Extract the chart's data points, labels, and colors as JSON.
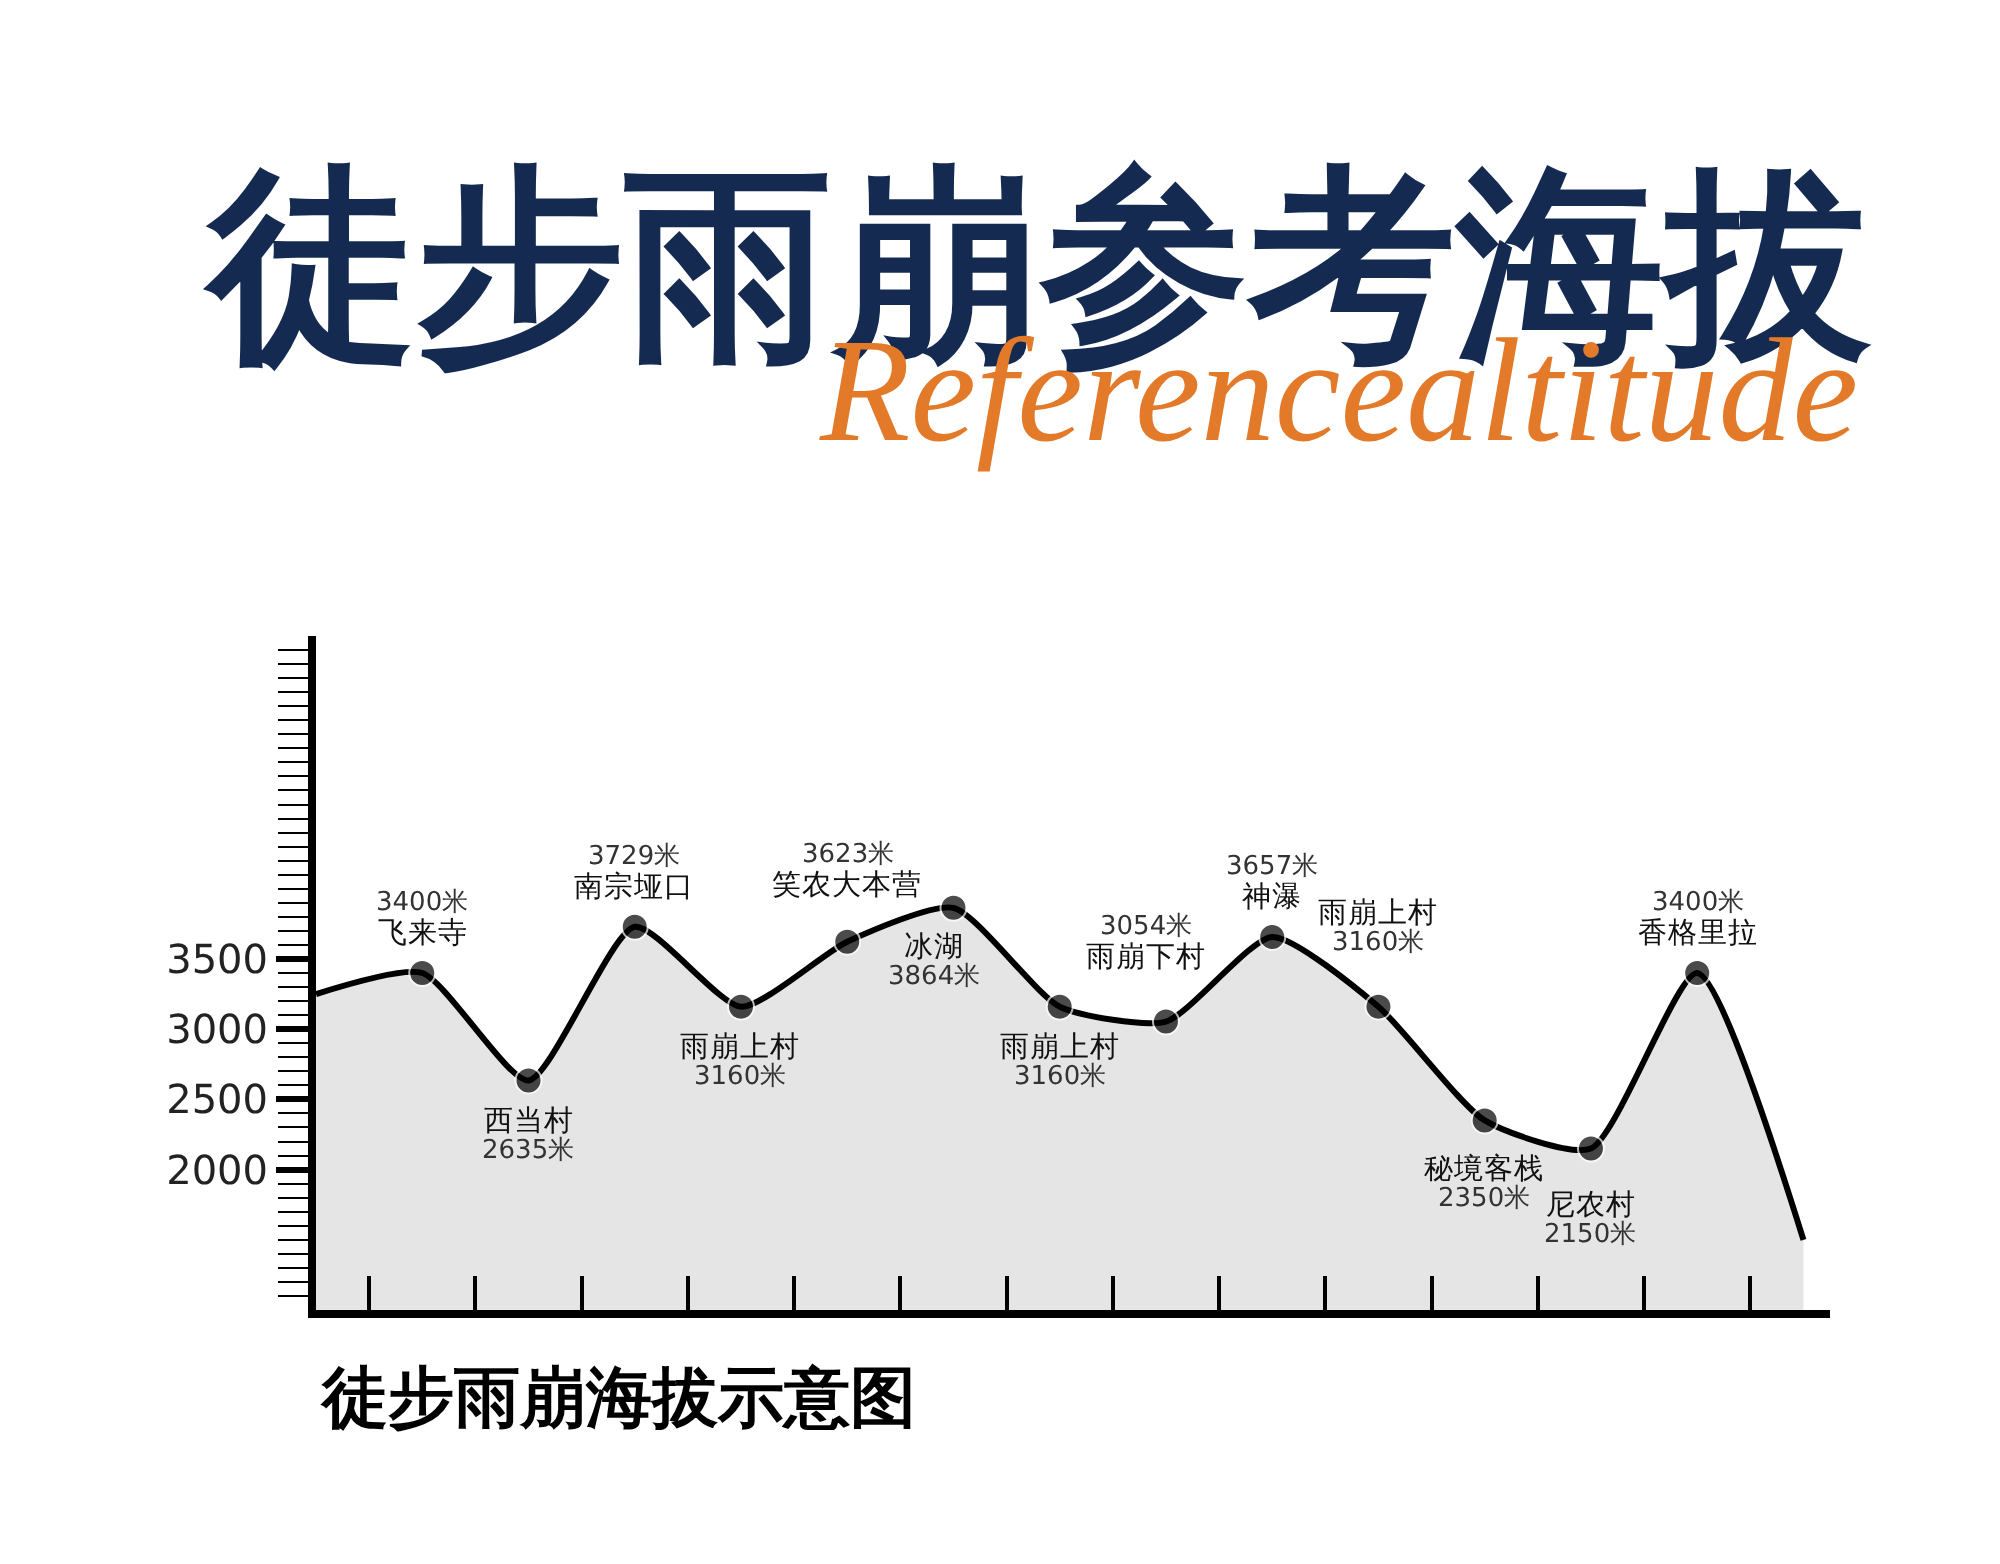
{
  "chart_data": {
    "type": "area",
    "title": "徒步雨崩参考海拔",
    "subtitle": "Referencealtitude",
    "categories": [
      null,
      null,
      null,
      null,
      null,
      null,
      null,
      null,
      null,
      null,
      null,
      null,
      null,
      null,
      null
    ],
    "ylim": [
      1000,
      5800
    ],
    "yticks": [
      {
        "value": 1100,
        "label": null
      },
      {
        "value": 1200,
        "label": null
      },
      {
        "value": 1300,
        "label": null
      },
      {
        "value": 1400,
        "label": null
      },
      {
        "value": 1500,
        "label": null
      },
      {
        "value": 1600,
        "label": null
      },
      {
        "value": 1700,
        "label": null
      },
      {
        "value": 1800,
        "label": null
      },
      {
        "value": 1900,
        "label": null
      },
      2000,
      {
        "value": 2100,
        "label": null
      },
      {
        "value": 2200,
        "label": null
      },
      {
        "value": 2300,
        "label": null
      },
      {
        "value": 2400,
        "label": null
      },
      2500,
      {
        "value": 2600,
        "label": null
      },
      {
        "value": 2700,
        "label": null
      },
      {
        "value": 2800,
        "label": null
      },
      {
        "value": 2900,
        "label": null
      },
      3000,
      {
        "value": 3100,
        "label": null
      },
      {
        "value": 3200,
        "label": null
      },
      {
        "value": 3300,
        "label": null
      },
      {
        "value": 3400,
        "label": null
      },
      3500,
      {
        "value": 3600,
        "label": null
      },
      {
        "value": 3700,
        "label": null
      },
      {
        "value": 3800,
        "label": null
      },
      {
        "value": 3900,
        "label": null
      },
      {
        "value": 4000,
        "label": null
      },
      {
        "value": 4100,
        "label": null
      },
      {
        "value": 4200,
        "label": null
      },
      {
        "value": 4300,
        "label": null
      },
      {
        "value": 4400,
        "label": null
      },
      {
        "value": 4500,
        "label": null
      },
      {
        "value": 4600,
        "label": null
      },
      {
        "value": 4700,
        "label": null
      },
      {
        "value": 4800,
        "label": null
      },
      {
        "value": 4900,
        "label": null
      },
      {
        "value": 5000,
        "label": null
      },
      {
        "value": 5100,
        "label": null
      },
      {
        "value": 5200,
        "label": null
      },
      {
        "value": 5300,
        "label": null
      },
      {
        "value": 5400,
        "label": null
      },
      {
        "value": 5500,
        "label": null
      },
      {
        "value": 5600,
        "label": null
      },
      {
        "value": 5700,
        "label": null
      }
    ],
    "tick_labels": "y",
    "series": [
      {
        "color": "#000000",
        "marker": "circle",
        "values": [
          3250,
          3400,
          2635,
          3729,
          3160,
          3623,
          3864,
          3160,
          3054,
          3657,
          3160,
          2350,
          2150,
          3400,
          1500
        ],
        "value_labels": [
          null,
          "3400米",
          "2635米",
          "3729米",
          "3160米",
          "3623米",
          "3864米",
          "3160米",
          "3054米",
          "3657米",
          "3160米",
          "2350米",
          "2150米",
          "3400米",
          null
        ]
      }
    ],
    "annotations": [
      {
        "text": "飞来寺",
        "y": 3400
      },
      {
        "text": "西当村",
        "y": 2635
      },
      {
        "text": "南宗垭口",
        "y": 3729
      },
      {
        "text": "雨崩上村",
        "y": 3160
      },
      {
        "text": "笑农大本营",
        "y": 3623
      },
      {
        "text": "冰湖",
        "y": 3864
      },
      {
        "text": "雨崩上村",
        "y": 3160
      },
      {
        "text": "雨崩下村",
        "y": 3054
      },
      {
        "text": "神瀑",
        "y": 3657
      },
      {
        "text": "雨崩上村",
        "y": 3160
      },
      {
        "text": "秘境客栈",
        "y": 2350
      },
      {
        "text": "尼农村",
        "y": 2150
      },
      {
        "text": "香格里拉",
        "y": 3400
      },
      "徒步雨崩海拔示意图"
    ]
  }
}
